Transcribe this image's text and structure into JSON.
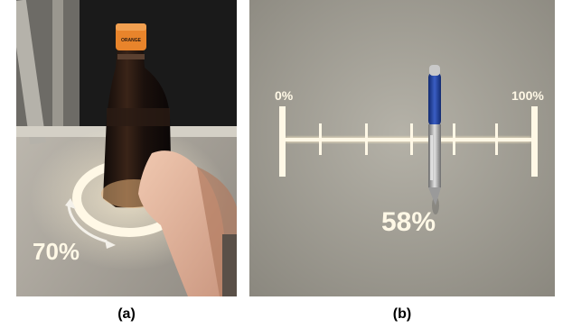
{
  "panels": [
    {
      "caption": "(a)",
      "projected_value": "70%",
      "bottle_cap_text": "ORANGE"
    },
    {
      "caption": "(b)",
      "slider_min_label": "0%",
      "slider_max_label": "100%",
      "projected_value": "58%",
      "slider_level_fraction": 0.58
    }
  ],
  "colors": {
    "projection_light": "#fff8e6",
    "background_wall": "#b3ab9f",
    "surface_b": "#9d9a91",
    "bottle_dark": "#1c1410",
    "cap_orange": "#e8842b",
    "pen_blue": "#1f3f9a"
  }
}
